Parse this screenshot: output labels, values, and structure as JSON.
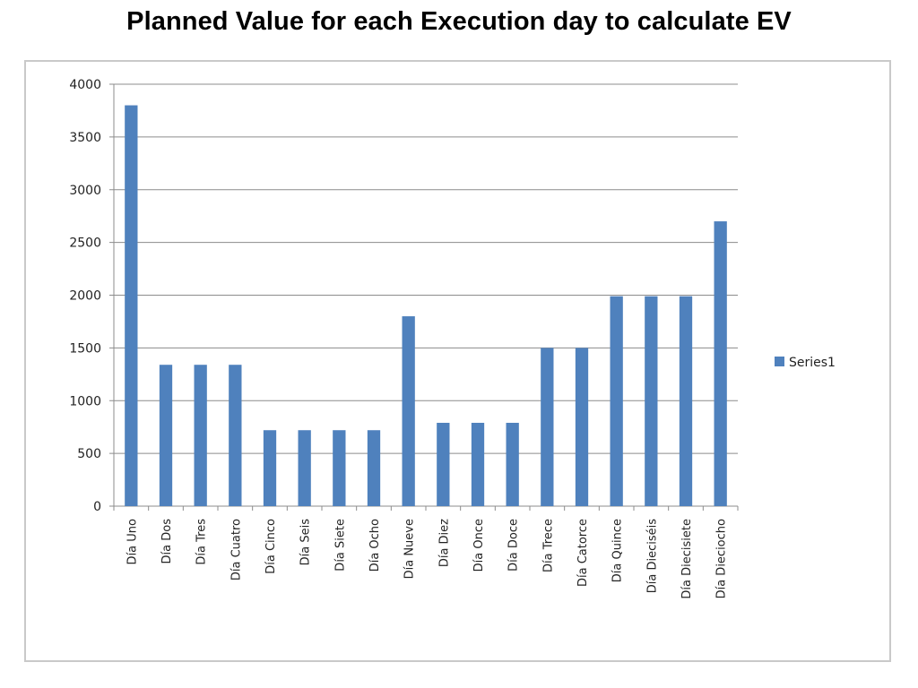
{
  "page": {
    "title": "Planned Value for each Execution day to calculate EV"
  },
  "chart_data": {
    "type": "bar",
    "title": "",
    "xlabel": "",
    "ylabel": "",
    "ylim": [
      0,
      4000
    ],
    "yticks": [
      0,
      500,
      1000,
      1500,
      2000,
      2500,
      3000,
      3500,
      4000
    ],
    "grid": true,
    "legend_position": "right",
    "bar_color": "#4f81bd",
    "categories": [
      "Día Uno",
      "Día Dos",
      "Día Tres",
      "Día Cuatro",
      "Día Cinco",
      "Día Seis",
      "Día Siete",
      "Día Ocho",
      "Día Nueve",
      "Día Diez",
      "Día Once",
      "Día Doce",
      "Día Trece",
      "Día Catorce",
      "Día Quince",
      "Día Dieciséis",
      "Día Diecisiete",
      "Día Dieciocho"
    ],
    "series": [
      {
        "name": "Series1",
        "values": [
          3800,
          1340,
          1340,
          1340,
          720,
          720,
          720,
          720,
          1800,
          790,
          790,
          790,
          1500,
          1500,
          1990,
          1990,
          1990,
          2700
        ]
      }
    ]
  }
}
